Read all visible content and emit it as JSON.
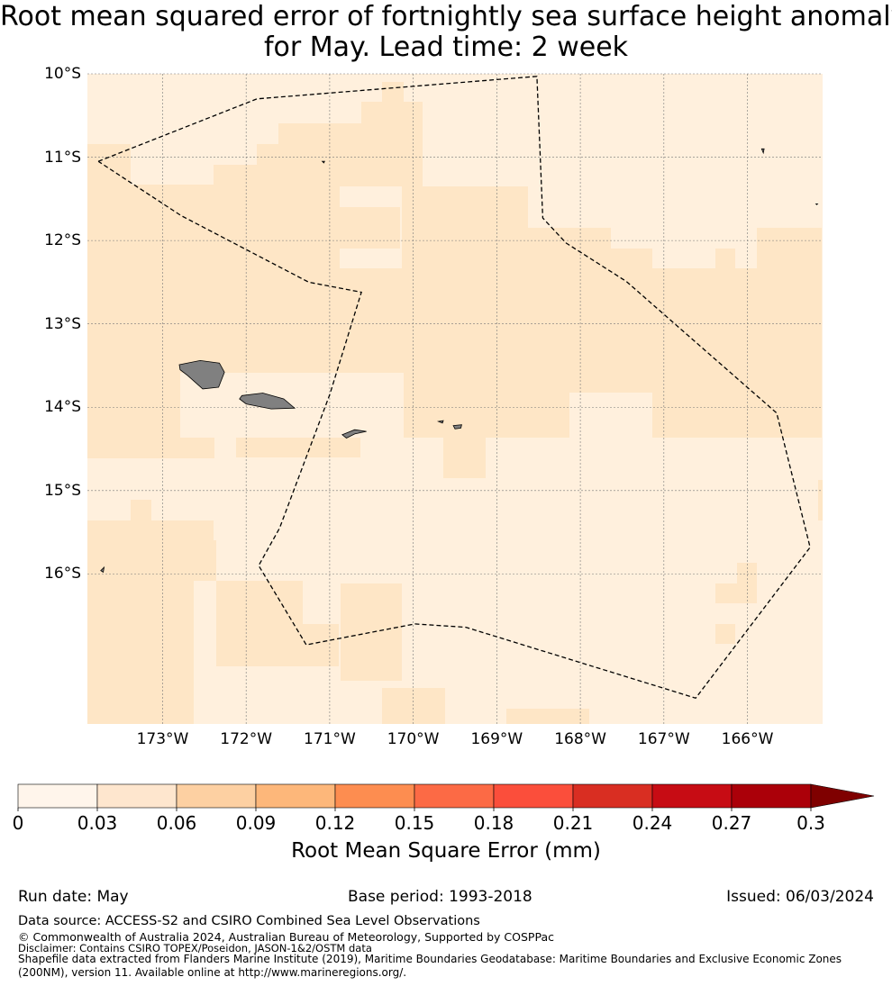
{
  "title": {
    "line1": "Root mean squared error of fortnightly sea surface height anomaly",
    "line2": "for May. Lead time: 2 week"
  },
  "map": {
    "lon_range": [
      -173.9,
      -165.1
    ],
    "lat_range": [
      -17.8,
      -10.0
    ],
    "lat_ticks": [
      {
        "value": -10,
        "label": "10°S"
      },
      {
        "value": -11,
        "label": "11°S"
      },
      {
        "value": -12,
        "label": "12°S"
      },
      {
        "value": -13,
        "label": "13°S"
      },
      {
        "value": -14,
        "label": "14°S"
      },
      {
        "value": -15,
        "label": "15°S"
      },
      {
        "value": -16,
        "label": "16°S"
      }
    ],
    "lon_ticks": [
      {
        "value": -173,
        "label": "173°W"
      },
      {
        "value": -172,
        "label": "172°W"
      },
      {
        "value": -171,
        "label": "171°W"
      },
      {
        "value": -170,
        "label": "170°W"
      },
      {
        "value": -169,
        "label": "169°W"
      },
      {
        "value": -168,
        "label": "168°W"
      },
      {
        "value": -167,
        "label": "167°W"
      },
      {
        "value": -166,
        "label": "166°W"
      }
    ],
    "grid_lines": true,
    "field_colors": {
      "low": "#fff0dd",
      "mid": "#fee6c6"
    },
    "land_color": "#808080",
    "boundary_style": "dashed",
    "eez_boundary": [
      [
        -173.77,
        -11.05
      ],
      [
        -171.87,
        -10.3
      ],
      [
        -168.52,
        -10.03
      ],
      [
        -168.45,
        -11.73
      ],
      [
        -168.17,
        -12.03
      ],
      [
        -167.45,
        -12.49
      ],
      [
        -165.65,
        -14.07
      ],
      [
        -165.25,
        -15.68
      ],
      [
        -166.62,
        -17.49
      ],
      [
        -169.37,
        -16.64
      ],
      [
        -169.98,
        -16.6
      ],
      [
        -171.28,
        -16.85
      ],
      [
        -171.85,
        -15.9
      ],
      [
        -171.6,
        -15.45
      ],
      [
        -171.0,
        -13.85
      ],
      [
        -170.62,
        -12.62
      ],
      [
        -171.25,
        -12.5
      ],
      [
        -172.78,
        -11.7
      ],
      [
        -173.77,
        -11.05
      ]
    ],
    "islands": [
      {
        "name": "savaii",
        "points": [
          [
            -172.8,
            -13.49
          ],
          [
            -172.55,
            -13.44
          ],
          [
            -172.32,
            -13.47
          ],
          [
            -172.26,
            -13.58
          ],
          [
            -172.33,
            -13.76
          ],
          [
            -172.52,
            -13.78
          ],
          [
            -172.7,
            -13.62
          ],
          [
            -172.79,
            -13.55
          ]
        ]
      },
      {
        "name": "upolu",
        "points": [
          [
            -172.05,
            -13.86
          ],
          [
            -171.8,
            -13.83
          ],
          [
            -171.55,
            -13.9
          ],
          [
            -171.42,
            -14.01
          ],
          [
            -171.7,
            -14.02
          ],
          [
            -172.0,
            -13.96
          ],
          [
            -172.08,
            -13.9
          ]
        ]
      },
      {
        "name": "tutuila",
        "points": [
          [
            -170.85,
            -14.33
          ],
          [
            -170.7,
            -14.27
          ],
          [
            -170.56,
            -14.29
          ],
          [
            -170.7,
            -14.32
          ],
          [
            -170.8,
            -14.37
          ]
        ]
      },
      {
        "name": "ofu-olosega",
        "points": [
          [
            -169.7,
            -14.17
          ],
          [
            -169.64,
            -14.16
          ],
          [
            -169.65,
            -14.19
          ]
        ]
      },
      {
        "name": "tau",
        "points": [
          [
            -169.52,
            -14.22
          ],
          [
            -169.42,
            -14.21
          ],
          [
            -169.43,
            -14.25
          ],
          [
            -169.5,
            -14.26
          ]
        ]
      },
      {
        "name": "small-1",
        "points": [
          [
            -171.09,
            -11.05
          ],
          [
            -171.06,
            -11.05
          ],
          [
            -171.07,
            -11.07
          ]
        ]
      },
      {
        "name": "small-2",
        "points": [
          [
            -165.83,
            -10.9
          ],
          [
            -165.8,
            -10.9
          ],
          [
            -165.81,
            -10.95
          ]
        ]
      },
      {
        "name": "small-3",
        "points": [
          [
            -165.18,
            -11.56
          ],
          [
            -165.16,
            -11.56
          ],
          [
            -165.17,
            -11.57
          ]
        ]
      },
      {
        "name": "small-4",
        "points": [
          [
            -173.74,
            -15.96
          ],
          [
            -173.7,
            -15.92
          ],
          [
            -173.71,
            -15.98
          ]
        ]
      }
    ]
  },
  "colorbar": {
    "title": "Root Mean Square Error (mm)",
    "ticks": [
      "0",
      "0.03",
      "0.06",
      "0.09",
      "0.12",
      "0.15",
      "0.18",
      "0.21",
      "0.24",
      "0.27",
      "0.3"
    ],
    "colors": [
      "#fff5eb",
      "#fee6ce",
      "#fdd0a2",
      "#fdb77a",
      "#fd8d50",
      "#fc6a45",
      "#fb4e3b",
      "#d92e22",
      "#c70c14",
      "#ab0009"
    ],
    "extend_color": "#7f0000",
    "extend": "max"
  },
  "footer": {
    "run_date": "Run date: May",
    "base_period": "Base period: 1993-2018",
    "issued": "Issued: 06/03/2024",
    "data_source": "Data source: ACCESS-S2 and CSIRO Combined Sea Level Observations",
    "copyright": "© Commonwealth of Australia 2024, Australian Bureau of Meteorology, Supported by COSPPac",
    "disclaimer": "Disclaimer: Contains CSIRO TOPEX/Poseidon, JASON-1&2/OSTM data",
    "shapefile_1": "Shapefile data extracted from Flanders Marine Institute (2019), Maritime Boundaries Geodatabase: Maritime Boundaries and Exclusive Economic Zones",
    "shapefile_2": "(200NM), version 11. Available online at http://www.marineregions.org/."
  }
}
